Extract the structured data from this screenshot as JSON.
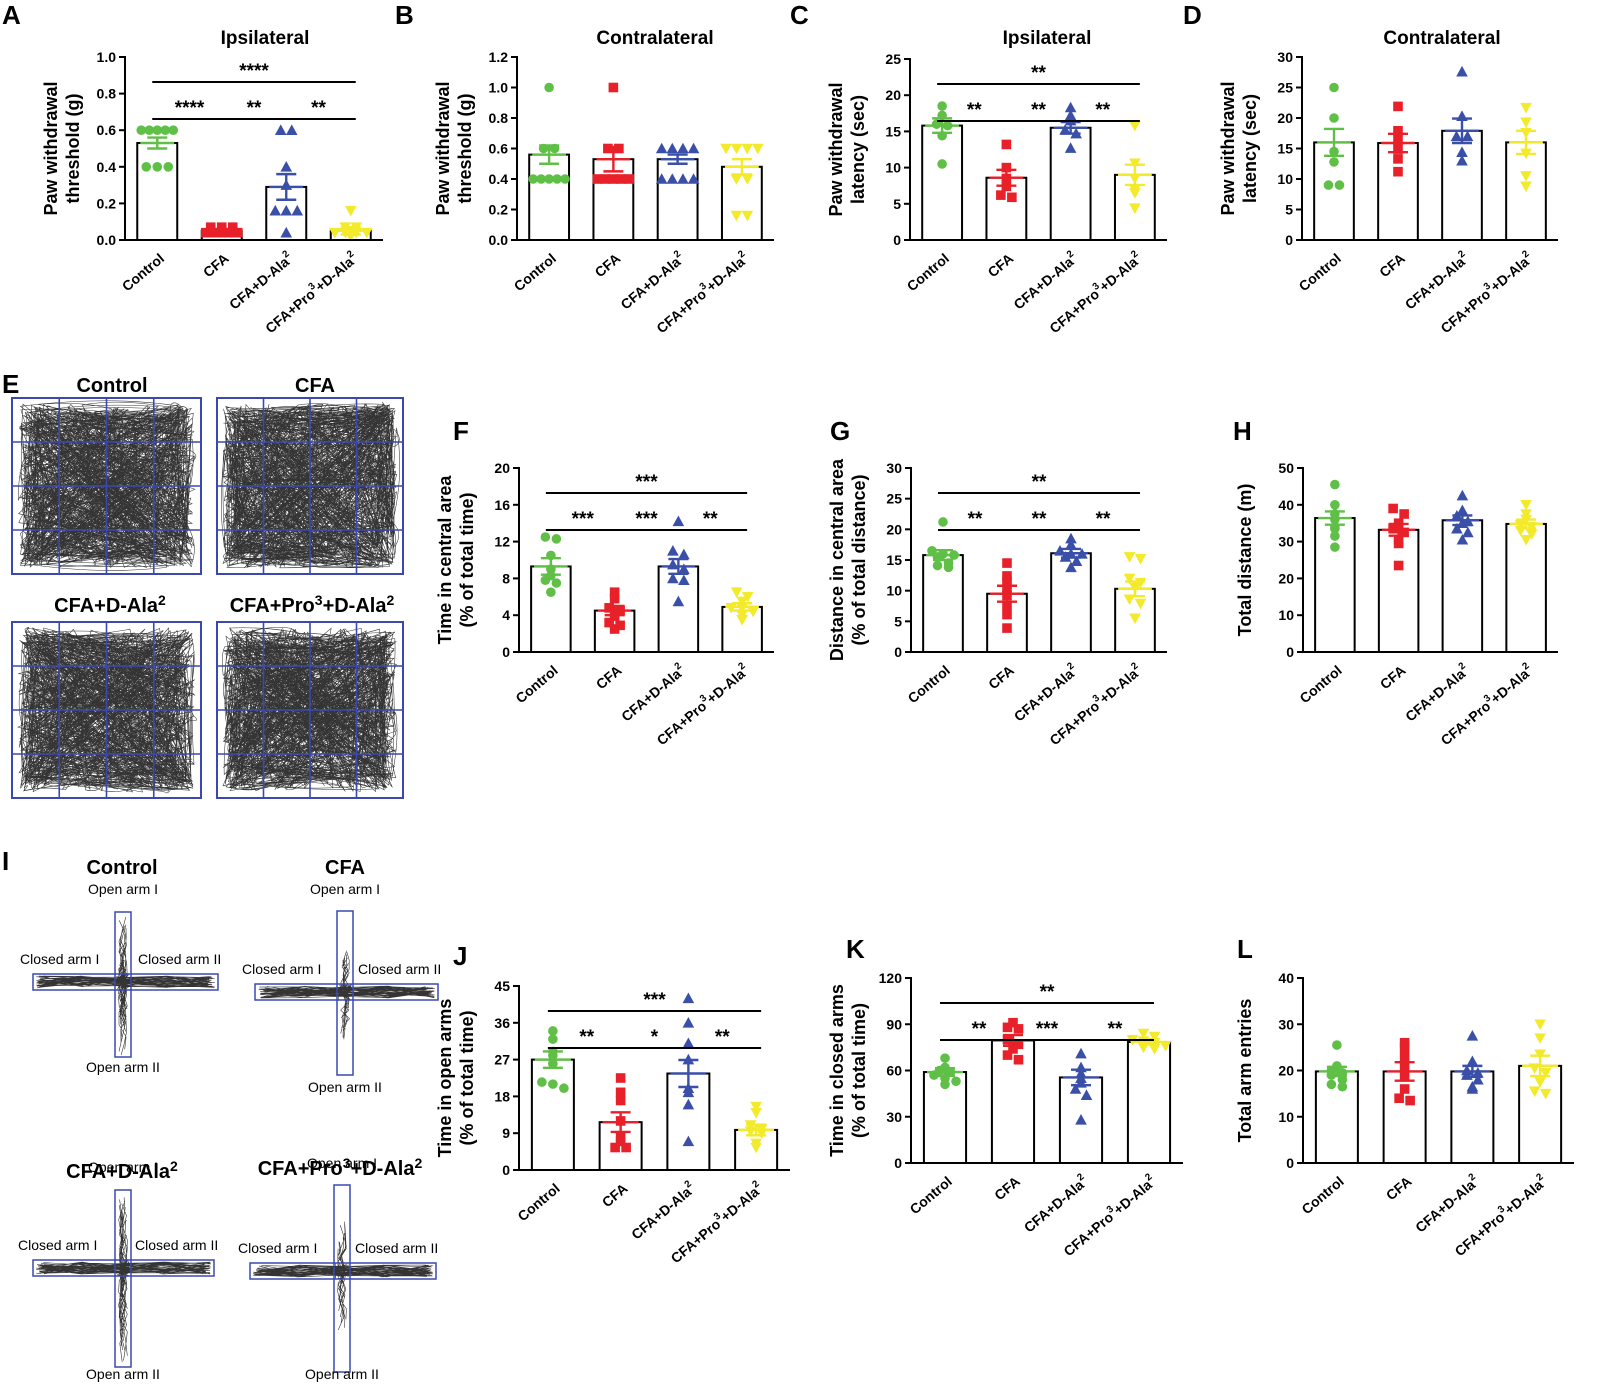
{
  "groups": [
    "Control",
    "CFA",
    "CFA+D-Ala2",
    "CFA+Pro3+D-Ala2"
  ],
  "group_labels": [
    {
      "text": "Control",
      "sup": [],
      "post": ""
    },
    {
      "text": "CFA",
      "sup": [],
      "post": ""
    },
    {
      "text": "CFA+D-Ala",
      "sup": [
        "2"
      ],
      "post": ""
    },
    {
      "text": "CFA+Pro",
      "sup": [
        "3",
        "2"
      ],
      "mid": "+D-Ala",
      "post": ""
    }
  ],
  "colors": [
    "#5fbf46",
    "#e8202a",
    "#3a4fa8",
    "#f2ea2a"
  ],
  "grid_color": "#3a48b0",
  "panel_letters": [
    "A",
    "B",
    "C",
    "D",
    "E",
    "F",
    "G",
    "H",
    "I",
    "J",
    "K",
    "L"
  ],
  "open_field": {
    "titles": [
      "Control",
      "CFA",
      "CFA+D-Ala2",
      "CFA+Pro3+D-Ala2"
    ]
  },
  "maze": {
    "titles": [
      "Control",
      "CFA",
      "CFA+D-Ala2",
      "CFA+Pro3+D-Ala2"
    ],
    "arm_labels": {
      "open1": "Open arm I",
      "open2": "Open arm II",
      "closed1": "Closed arm I",
      "closed2": "Closed arm II"
    }
  },
  "chart_data": [
    {
      "id": "A",
      "type": "bar",
      "title": "Ipsilateral",
      "ylabel": [
        "Paw withdrawal",
        "threshold (g)"
      ],
      "ylim": [
        0,
        1.0
      ],
      "ticks": [
        0.0,
        0.2,
        0.4,
        0.6,
        0.8,
        1.0
      ],
      "decimals": 1,
      "categories": [
        "Control",
        "CFA",
        "CFA+D-Ala2",
        "CFA+Pro3+D-Ala2"
      ],
      "means": [
        0.53,
        0.05,
        0.29,
        0.05
      ],
      "sem": [
        0.03,
        0.01,
        0.07,
        0.02
      ],
      "points": [
        [
          0.6,
          0.6,
          0.6,
          0.6,
          0.6,
          0.4,
          0.4,
          0.4
        ],
        [
          0.07,
          0.07,
          0.07,
          0.04,
          0.04,
          0.04,
          0.04,
          0.04
        ],
        [
          0.6,
          0.6,
          0.4,
          0.3,
          0.16,
          0.16,
          0.16,
          0.04
        ],
        [
          0.16,
          0.07,
          0.07,
          0.04,
          0.04,
          0.04,
          0.04,
          0.02
        ]
      ],
      "sig": [
        {
          "a": 0,
          "b": 3,
          "label": "****"
        },
        {
          "a": 0,
          "b": 1,
          "label": "****"
        },
        {
          "a": 1,
          "b": 2,
          "label": "**"
        },
        {
          "a": 2,
          "b": 3,
          "label": "**"
        }
      ]
    },
    {
      "id": "B",
      "type": "bar",
      "title": "Contralateral",
      "ylabel": [
        "Paw withdrawal",
        "threshold (g)"
      ],
      "ylim": [
        0,
        1.2
      ],
      "ticks": [
        0.0,
        0.2,
        0.4,
        0.6,
        0.8,
        1.0,
        1.2
      ],
      "decimals": 1,
      "categories": [
        "Control",
        "CFA",
        "CFA+D-Ala2",
        "CFA+Pro3+D-Ala2"
      ],
      "means": [
        0.56,
        0.53,
        0.53,
        0.48
      ],
      "sem": [
        0.06,
        0.08,
        0.03,
        0.05
      ],
      "points": [
        [
          1.0,
          0.6,
          0.6,
          0.4,
          0.4,
          0.4,
          0.4,
          0.4
        ],
        [
          1.0,
          0.6,
          0.6,
          0.4,
          0.4,
          0.4,
          0.4,
          0.4
        ],
        [
          0.6,
          0.6,
          0.6,
          0.6,
          0.4,
          0.4,
          0.4,
          0.4
        ],
        [
          0.6,
          0.6,
          0.6,
          0.6,
          0.4,
          0.4,
          0.16,
          0.16
        ]
      ],
      "sig": []
    },
    {
      "id": "C",
      "type": "bar",
      "title": "Ipsilateral",
      "ylabel": [
        "Paw withdrawal",
        "latency (sec)"
      ],
      "ylim": [
        0,
        25
      ],
      "ticks": [
        0,
        5,
        10,
        15,
        20,
        25
      ],
      "decimals": 0,
      "categories": [
        "Control",
        "CFA",
        "CFA+D-Ala2",
        "CFA+Pro3+D-Ala2"
      ],
      "means": [
        15.8,
        8.6,
        15.5,
        9.0
      ],
      "sem": [
        1.0,
        1.1,
        0.8,
        1.4
      ],
      "points": [
        [
          18.5,
          17.2,
          16.0,
          15.8,
          14.4,
          10.5
        ],
        [
          13.2,
          10.0,
          8.5,
          7.4,
          6.2,
          5.9
        ],
        [
          18.3,
          17.2,
          16.5,
          15.2,
          14.7,
          12.7
        ],
        [
          15.8,
          10.6,
          8.5,
          7.0,
          6.5,
          4.4
        ]
      ],
      "sig": [
        {
          "a": 0,
          "b": 3,
          "label": "**"
        },
        {
          "a": 0,
          "b": 1,
          "label": "**"
        },
        {
          "a": 1,
          "b": 2,
          "label": "**"
        },
        {
          "a": 2,
          "b": 3,
          "label": "**"
        }
      ]
    },
    {
      "id": "D",
      "type": "bar",
      "title": "Contralateral",
      "ylabel": [
        "Paw withdrawal",
        "latency (sec)"
      ],
      "ylim": [
        0,
        30
      ],
      "ticks": [
        0,
        5,
        10,
        15,
        20,
        25,
        30
      ],
      "decimals": 0,
      "categories": [
        "Control",
        "CFA",
        "CFA+D-Ala2",
        "CFA+Pro3+D-Ala2"
      ],
      "means": [
        16.0,
        15.9,
        17.9,
        16.0
      ],
      "sem": [
        2.2,
        1.5,
        2.0,
        1.9
      ],
      "points": [
        [
          25.0,
          20.0,
          14.5,
          12.8,
          9.0,
          9.0
        ],
        [
          21.9,
          17.9,
          16.4,
          14.9,
          13.3,
          11.2
        ],
        [
          27.6,
          20.3,
          17.0,
          17.0,
          14.4,
          13.0
        ],
        [
          21.7,
          19.3,
          17.6,
          14.2,
          10.5,
          8.8
        ]
      ],
      "sig": []
    },
    {
      "id": "F",
      "type": "bar",
      "title": "",
      "ylabel": [
        "Time in central area",
        "(% of total time)"
      ],
      "ylim": [
        0,
        20
      ],
      "ticks": [
        0,
        4,
        8,
        12,
        16,
        20
      ],
      "decimals": 0,
      "categories": [
        "Control",
        "CFA",
        "CFA+D-Ala2",
        "CFA+Pro3+D-Ala2"
      ],
      "means": [
        9.3,
        4.5,
        9.3,
        4.9
      ],
      "sem": [
        0.9,
        0.5,
        0.8,
        0.4
      ],
      "points": [
        [
          12.5,
          12.3,
          10.5,
          9.0,
          8.3,
          7.8,
          7.5,
          6.5
        ],
        [
          6.5,
          5.8,
          4.8,
          4.5,
          3.9,
          3.2,
          2.9,
          2.5
        ],
        [
          14.2,
          11.0,
          10.6,
          9.5,
          9.0,
          8.0,
          7.8,
          5.5
        ],
        [
          6.5,
          6.0,
          5.5,
          4.8,
          4.8,
          4.4,
          4.0,
          3.5
        ]
      ],
      "sig": [
        {
          "a": 0,
          "b": 3,
          "label": "***"
        },
        {
          "a": 0,
          "b": 1,
          "label": "***"
        },
        {
          "a": 1,
          "b": 2,
          "label": "***"
        },
        {
          "a": 2,
          "b": 3,
          "label": "**"
        }
      ]
    },
    {
      "id": "G",
      "type": "bar",
      "title": "",
      "ylabel": [
        "Distance in central area",
        "(% of total distance)"
      ],
      "ylim": [
        0,
        30
      ],
      "ticks": [
        0,
        5,
        10,
        15,
        20,
        25,
        30
      ],
      "decimals": 0,
      "categories": [
        "Control",
        "CFA",
        "CFA+D-Ala2",
        "CFA+Pro3+D-Ala2"
      ],
      "means": [
        15.8,
        9.5,
        16.1,
        10.3
      ],
      "sem": [
        0.8,
        1.3,
        0.7,
        1.2
      ],
      "points": [
        [
          21.2,
          16.5,
          16.0,
          15.8,
          15.5,
          14.5,
          14.1,
          13.8
        ],
        [
          14.5,
          12.4,
          11.5,
          10.2,
          9.2,
          7.6,
          6.1,
          3.9
        ],
        [
          18.5,
          17.5,
          16.5,
          16.0,
          16.0,
          15.5,
          14.8,
          13.8
        ],
        [
          15.5,
          15.2,
          12.0,
          11.3,
          10.5,
          8.6,
          7.9,
          5.5
        ]
      ],
      "sig": [
        {
          "a": 0,
          "b": 3,
          "label": "**"
        },
        {
          "a": 0,
          "b": 1,
          "label": "**"
        },
        {
          "a": 1,
          "b": 2,
          "label": "**"
        },
        {
          "a": 2,
          "b": 3,
          "label": "**"
        }
      ]
    },
    {
      "id": "H",
      "type": "bar",
      "title": "",
      "ylabel": [
        "Total distance (m)"
      ],
      "ylim": [
        0,
        50
      ],
      "ticks": [
        0,
        10,
        20,
        30,
        40,
        50
      ],
      "decimals": 0,
      "categories": [
        "Control",
        "CFA",
        "CFA+D-Ala2",
        "CFA+Pro3+D-Ala2"
      ],
      "means": [
        36.4,
        33.2,
        35.8,
        34.8
      ],
      "sem": [
        1.8,
        1.6,
        1.3,
        1.2
      ],
      "points": [
        [
          45.5,
          40.0,
          37.5,
          36.0,
          34.0,
          33.5,
          31.5,
          28.5
        ],
        [
          39.0,
          37.5,
          35.0,
          33.5,
          32.5,
          30.5,
          29.5,
          23.5
        ],
        [
          42.5,
          38.5,
          37.0,
          35.5,
          35.0,
          33.5,
          32.5,
          30.5
        ],
        [
          40.0,
          37.5,
          36.0,
          34.5,
          34.0,
          33.0,
          32.0,
          30.5
        ]
      ],
      "sig": []
    },
    {
      "id": "J",
      "type": "bar",
      "title": "",
      "ylabel": [
        "Time in open arms",
        "(% of total time)"
      ],
      "ylim": [
        0,
        45
      ],
      "ticks": [
        0,
        9,
        18,
        27,
        36,
        45
      ],
      "decimals": 0,
      "categories": [
        "Control",
        "CFA",
        "CFA+D-Ala2",
        "CFA+Pro3+D-Ala2"
      ],
      "means": [
        27.0,
        11.7,
        23.6,
        9.8
      ],
      "sem": [
        2.0,
        2.4,
        3.3,
        1.3
      ],
      "points": [
        [
          34.0,
          32.0,
          29.0,
          28.0,
          26.0,
          21.5,
          21.0,
          20.0
        ],
        [
          22.5,
          19.0,
          17.0,
          12.0,
          8.0,
          7.0,
          5.5,
          5.5
        ],
        [
          42.0,
          36.0,
          31.0,
          27.0,
          20.0,
          19.0,
          16.0,
          7.0
        ],
        [
          15.5,
          14.0,
          11.0,
          10.0,
          9.5,
          9.0,
          6.5,
          5.5
        ]
      ],
      "sig": [
        {
          "a": 0,
          "b": 3,
          "label": "***"
        },
        {
          "a": 0,
          "b": 1,
          "label": "**"
        },
        {
          "a": 1,
          "b": 2,
          "label": "*"
        },
        {
          "a": 2,
          "b": 3,
          "label": "**"
        }
      ]
    },
    {
      "id": "K",
      "type": "bar",
      "title": "",
      "ylabel": [
        "Time in closed arms",
        "(% of total time)"
      ],
      "ylim": [
        0,
        120
      ],
      "ticks": [
        0,
        30,
        60,
        90,
        120
      ],
      "decimals": 0,
      "categories": [
        "Control",
        "CFA",
        "CFA+D-Ala2",
        "CFA+Pro3+D-Ala2"
      ],
      "means": [
        59.0,
        79.5,
        55.5,
        78.5
      ],
      "sem": [
        2.5,
        3.5,
        5.0,
        1.5
      ],
      "points": [
        [
          68.0,
          62.0,
          60.0,
          59.0,
          57.0,
          55.0,
          53.0,
          51.0
        ],
        [
          91.0,
          88.0,
          87.0,
          80.0,
          77.0,
          74.0,
          70.0,
          67.0
        ],
        [
          71.0,
          62.0,
          58.0,
          55.0,
          52.0,
          48.0,
          44.0,
          28.0
        ],
        [
          84.0,
          82.0,
          80.0,
          79.0,
          78.0,
          76.0,
          75.0,
          74.0
        ]
      ],
      "sig": [
        {
          "a": 0,
          "b": 3,
          "label": "**"
        },
        {
          "a": 0,
          "b": 1,
          "label": "**"
        },
        {
          "a": 1,
          "b": 2,
          "label": "***"
        },
        {
          "a": 2,
          "b": 3,
          "label": "**"
        }
      ]
    },
    {
      "id": "L",
      "type": "bar",
      "title": "",
      "ylabel": [
        "Total arm entries"
      ],
      "ylim": [
        0,
        40
      ],
      "ticks": [
        0,
        10,
        20,
        30,
        40
      ],
      "decimals": 0,
      "categories": [
        "Control",
        "CFA",
        "CFA+D-Ala2",
        "CFA+Pro3+D-Ala2"
      ],
      "means": [
        19.8,
        19.8,
        19.8,
        21.0
      ],
      "sem": [
        1.0,
        2.0,
        1.2,
        2.2
      ],
      "points": [
        [
          25.5,
          21.0,
          20.0,
          19.5,
          19.0,
          18.0,
          17.0,
          16.5
        ],
        [
          26.0,
          25.0,
          23.0,
          21.0,
          19.0,
          16.0,
          14.0,
          13.5
        ],
        [
          27.5,
          22.0,
          20.0,
          19.5,
          19.0,
          18.0,
          16.5,
          16.0
        ],
        [
          30.0,
          27.0,
          23.5,
          20.5,
          19.5,
          17.5,
          15.5,
          15.0
        ]
      ],
      "sig": []
    }
  ]
}
